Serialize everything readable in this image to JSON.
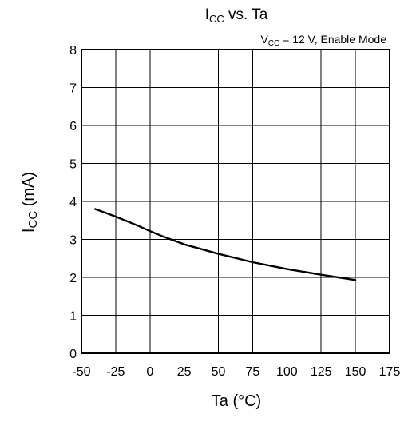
{
  "chart_data": {
    "type": "line",
    "title": {
      "main": "I",
      "sub": "CC",
      "rest": " vs. Ta"
    },
    "subtitle": {
      "main": "V",
      "sub": "CC",
      "rest": " = 12 V, Enable Mode"
    },
    "xlabel": "Ta  (°C)",
    "ylabel": {
      "main": "I",
      "sub": "CC",
      "rest": "  (mA)"
    },
    "xlim": [
      -50,
      175
    ],
    "ylim": [
      0,
      8
    ],
    "x_ticks": [
      -50,
      -25,
      0,
      25,
      50,
      75,
      100,
      125,
      150,
      175
    ],
    "y_ticks": [
      0,
      1,
      2,
      3,
      4,
      5,
      6,
      7,
      8
    ],
    "x_tick_labels": [
      "-50",
      "-25",
      "0",
      "25",
      "50",
      "75",
      "100",
      "125",
      "150",
      "175"
    ],
    "y_tick_labels": [
      "0",
      "1",
      "2",
      "3",
      "4",
      "5",
      "6",
      "7",
      "8"
    ],
    "grid": true,
    "series": [
      {
        "x": [
          -40,
          -25,
          -10,
          0,
          10,
          25,
          50,
          75,
          100,
          125,
          150
        ],
        "y": [
          3.8,
          3.6,
          3.38,
          3.22,
          3.07,
          2.87,
          2.62,
          2.4,
          2.22,
          2.07,
          1.93
        ]
      }
    ],
    "line_color": "#000000",
    "grid_color": "#000000"
  }
}
